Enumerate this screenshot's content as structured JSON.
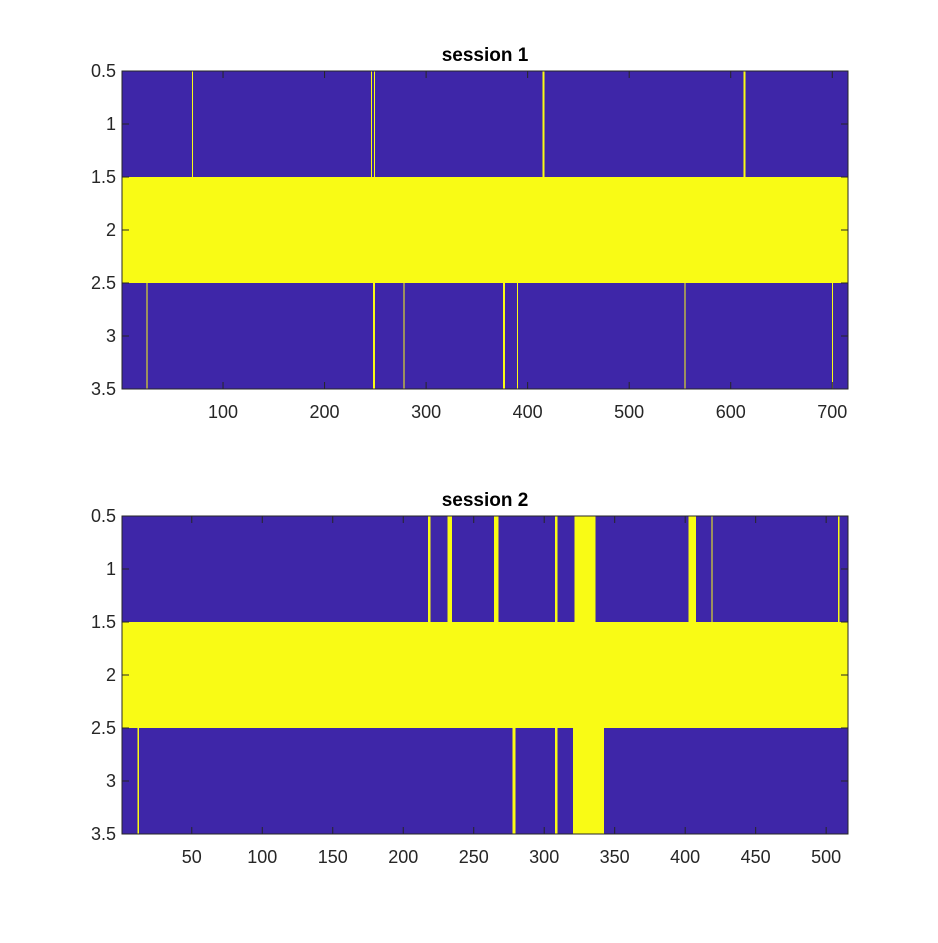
{
  "chart_data": [
    {
      "type": "heatmap",
      "title": "session 1",
      "xlabel": "",
      "ylabel": "",
      "xlim": [
        0.5,
        715.5
      ],
      "ylim": [
        0.5,
        3.5
      ],
      "y_reversed": true,
      "xticks": [
        100,
        200,
        300,
        400,
        500,
        600,
        700
      ],
      "yticks": [
        0.5,
        1,
        1.5,
        2,
        2.5,
        3,
        3.5
      ],
      "xtick_labels": [
        "100",
        "200",
        "300",
        "400",
        "500",
        "600",
        "700"
      ],
      "ytick_labels": [
        "0.5",
        "1",
        "1.5",
        "2",
        "2.5",
        "3",
        "3.5"
      ],
      "grid": false,
      "colors": {
        "0": "#3e26a8",
        "1": "#f9fb15"
      },
      "rows": [
        {
          "row": 1,
          "default": 0,
          "active_columns": [
            70,
            246,
            249,
            415,
            416,
            613,
            614
          ]
        },
        {
          "row": 2,
          "default": 1,
          "active_columns": []
        },
        {
          "row": 3,
          "default": 0,
          "active_columns": [
            25,
            248,
            249,
            278,
            376,
            377,
            390,
            555,
            700
          ]
        }
      ]
    },
    {
      "type": "heatmap",
      "title": "session 2",
      "xlabel": "",
      "ylabel": "",
      "xlim": [
        0.5,
        515.5
      ],
      "ylim": [
        0.5,
        3.5
      ],
      "y_reversed": true,
      "xticks": [
        50,
        100,
        150,
        200,
        250,
        300,
        350,
        400,
        450,
        500
      ],
      "yticks": [
        0.5,
        1,
        1.5,
        2,
        2.5,
        3,
        3.5
      ],
      "xtick_labels": [
        "50",
        "100",
        "150",
        "200",
        "250",
        "300",
        "350",
        "400",
        "450",
        "500"
      ],
      "ytick_labels": [
        "0.5",
        "1",
        "1.5",
        "2",
        "2.5",
        "3",
        "3.5"
      ],
      "grid": false,
      "colors": {
        "0": "#3e26a8",
        "1": "#f9fb15"
      },
      "rows": [
        {
          "row": 1,
          "default": 0,
          "active_columns": [
            218,
            219,
            232,
            233,
            234,
            265,
            266,
            267,
            308,
            309,
            322,
            323,
            324,
            325,
            326,
            327,
            328,
            329,
            330,
            331,
            332,
            333,
            334,
            335,
            336,
            403,
            404,
            405,
            406,
            407,
            419,
            509
          ]
        },
        {
          "row": 2,
          "default": 1,
          "active_columns": []
        },
        {
          "row": 3,
          "default": 0,
          "active_columns": [
            12,
            278,
            279,
            308,
            309,
            321,
            322,
            323,
            324,
            325,
            326,
            327,
            328,
            329,
            330,
            331,
            332,
            333,
            334,
            335,
            336,
            337,
            338,
            339,
            340,
            341,
            342
          ]
        }
      ]
    }
  ]
}
